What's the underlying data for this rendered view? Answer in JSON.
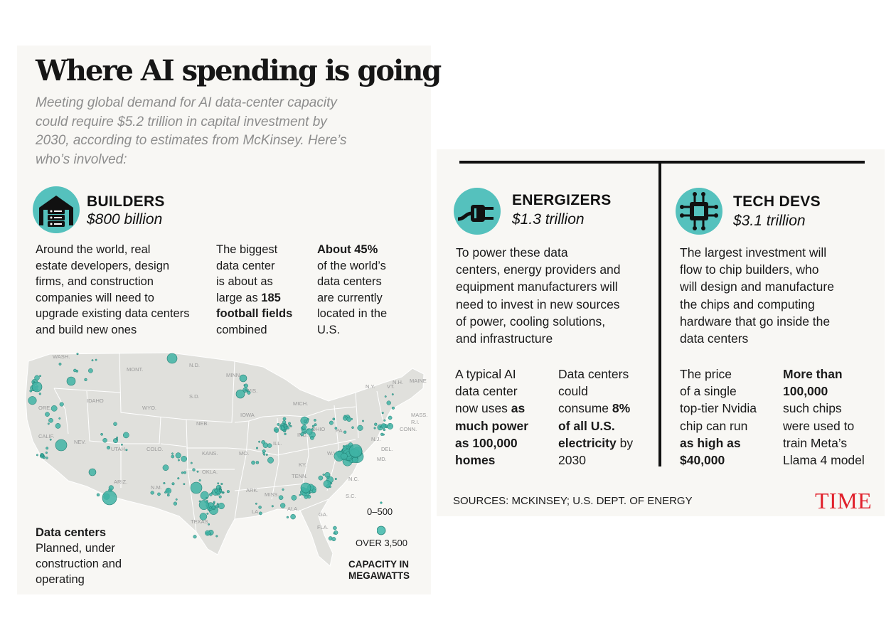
{
  "title": "Where AI spending is going",
  "subtitle": "Meeting global demand for AI data-center capacity could require $5.2 trillion in capital investment by 2030, according to estimates from McKinsey. Here’s who’s involved:",
  "builders": {
    "title": "BUILDERS",
    "amount": "$800 billion",
    "description": "Around the world, real\nestate developers, design\nfirms, and construction\ncompanies will need to\nupgrade existing data centers\nand build new ones",
    "stat1": {
      "pre": "The biggest\ndata center\nis about as\nlarge as ",
      "bold": "185\nfootball fields",
      "post": "\ncombined"
    },
    "stat2": {
      "bold": "About 45%",
      "post": "\nof the world’s\ndata centers\nare currently\nlocated in the\nU.S."
    }
  },
  "energizers": {
    "title": "ENERGIZERS",
    "amount": "$1.3 trillion",
    "description": "To power these data\ncenters, energy providers and\nequipment manufacturers will\nneed to invest in new sources\nof power, cooling solutions,\nand infrastructure",
    "stat1": {
      "pre": "A typical AI\ndata center\nnow uses ",
      "bold": "as\nmuch power\nas 100,000\nhomes",
      "post": ""
    },
    "stat2": {
      "pre": "Data centers\ncould\nconsume ",
      "bold": "8%\nof all U.S.\nelectricity",
      "post": " by\n2030"
    }
  },
  "techdevs": {
    "title": "TECH DEVS",
    "amount": "$3.1 trillion",
    "description": "The largest investment will\nflow to chip builders, who\nwill design and manufacture\nthe chips and computing\nhardware that go inside the\ndata centers",
    "stat1": {
      "pre": "The price\nof a single\ntop-tier Nvidia\nchip can run\n",
      "bold": "as high as\n$40,000",
      "post": ""
    },
    "stat2": {
      "bold": "More than\n100,000",
      "post": "\nsuch chips\nwere used to\ntrain Meta’s\nLlama 4 model"
    }
  },
  "map": {
    "legend_title": "Data centers",
    "legend_desc": "Planned, under\nconstruction and\noperating",
    "size_small": "0–500",
    "size_large": "OVER 3,500",
    "capacity_label": "CAPACITY IN\nMEGAWATTS",
    "dot_color": "#3fb3a5",
    "state_labels": [
      "WASH.",
      "MONT.",
      "N.D.",
      "MINN.",
      "WIS.",
      "MICH.",
      "N.Y.",
      "VT.",
      "N.H.",
      "MAINE",
      "MASS.",
      "R.I.",
      "CONN.",
      "ORE.",
      "IDAHO",
      "WYO.",
      "S.D.",
      "IOWA",
      "NEB.",
      "ILL.",
      "IND.",
      "OHIO",
      "PA.",
      "N.J.",
      "DEL.",
      "MD.",
      "W.VA.",
      "VA.",
      "CALIF.",
      "NEV.",
      "UTAH",
      "COLO.",
      "KANS.",
      "MO.",
      "KY.",
      "N.C.",
      "TENN.",
      "S.C.",
      "ARIZ.",
      "N.M.",
      "OKLA.",
      "ARK.",
      "MISS.",
      "ALA.",
      "GA.",
      "TEXAS",
      "LA.",
      "FLA."
    ]
  },
  "sources": "SOURCES: MCKINSEY; U.S. DEPT. OF ENERGY",
  "logo": "TIME",
  "colors": {
    "accent": "#55c1bd",
    "logo": "#e0202b",
    "panel": "#f8f7f4"
  }
}
